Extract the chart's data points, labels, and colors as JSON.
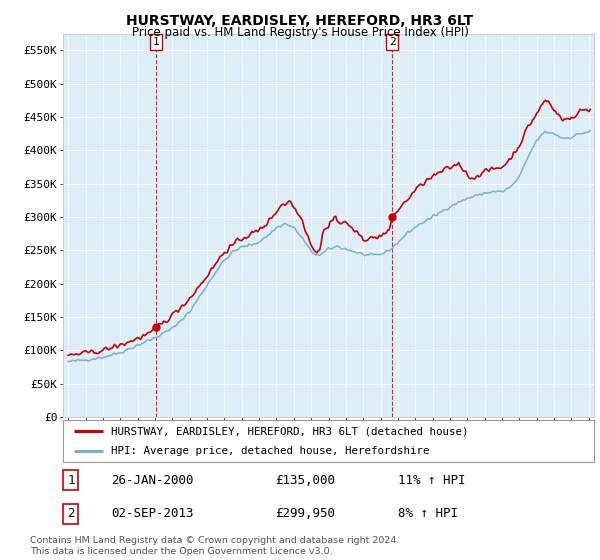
{
  "title": "HURSTWAY, EARDISLEY, HEREFORD, HR3 6LT",
  "subtitle": "Price paid vs. HM Land Registry's House Price Index (HPI)",
  "ylabel_ticks": [
    "£0",
    "£50K",
    "£100K",
    "£150K",
    "£200K",
    "£250K",
    "£300K",
    "£350K",
    "£400K",
    "£450K",
    "£500K",
    "£550K"
  ],
  "ytick_values": [
    0,
    50000,
    100000,
    150000,
    200000,
    250000,
    300000,
    350000,
    400000,
    450000,
    500000,
    550000
  ],
  "ylim": [
    0,
    575000
  ],
  "xlim_start": 1994.7,
  "xlim_end": 2025.3,
  "bg_color": "#ffffff",
  "plot_bg_color": "#ddeef8",
  "grid_color": "#ffffff",
  "red_color": "#cc0000",
  "blue_color": "#7aafd4",
  "sale1_date": 2000.07,
  "sale1_price": 135000,
  "sale1_label": "1",
  "sale2_date": 2013.67,
  "sale2_price": 299950,
  "sale2_label": "2",
  "legend_line1": "HURSTWAY, EARDISLEY, HEREFORD, HR3 6LT (detached house)",
  "legend_line2": "HPI: Average price, detached house, Herefordshire",
  "table_row1": [
    "1",
    "26-JAN-2000",
    "£135,000",
    "11% ↑ HPI"
  ],
  "table_row2": [
    "2",
    "02-SEP-2013",
    "£299,950",
    "8% ↑ HPI"
  ],
  "footer": "Contains HM Land Registry data © Crown copyright and database right 2024.\nThis data is licensed under the Open Government Licence v3.0."
}
